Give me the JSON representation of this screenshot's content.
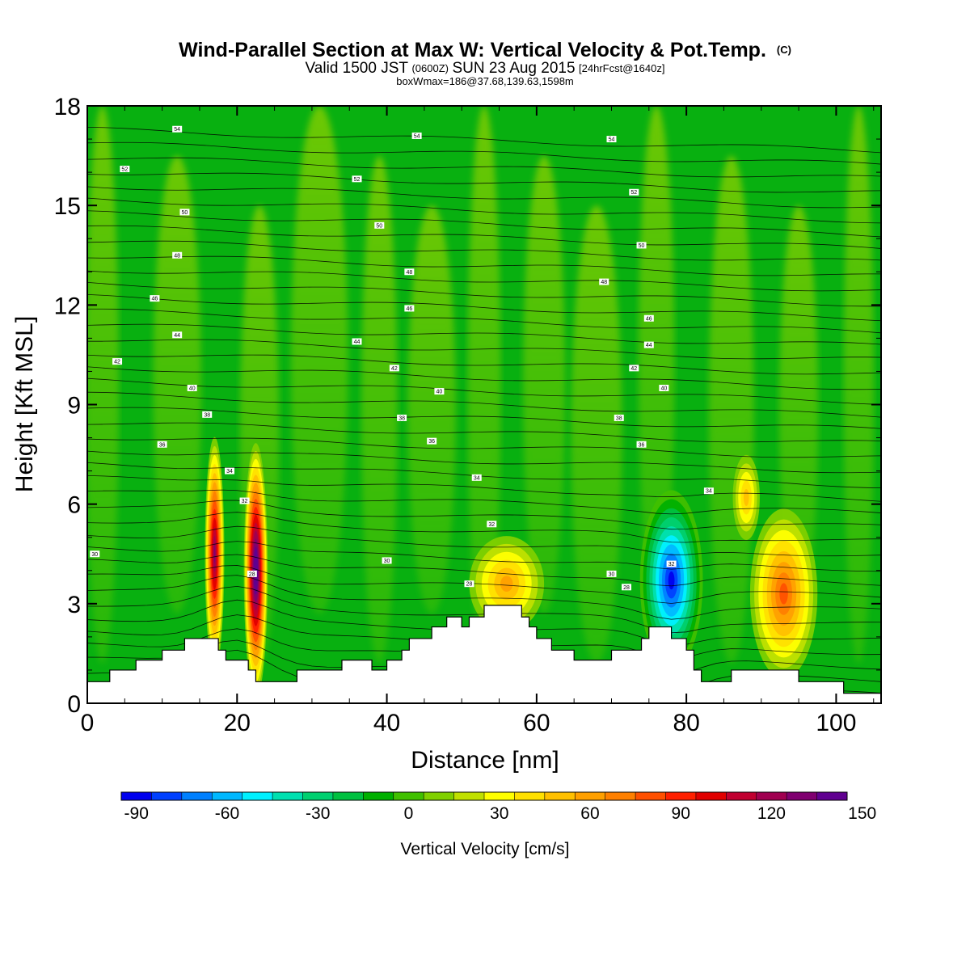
{
  "title": {
    "main": "Wind-Parallel Section at Max W: Vertical Velocity & Pot.Temp.",
    "main_mark": "(C)",
    "line2_a": "Valid 1500 JST",
    "line2_b": "(0600Z)",
    "line2_c": "SUN 23 Aug 2015",
    "line2_d": "[24hrFcst@1640z]",
    "line3": "boxWmax=186@37.68,139.63,1598m"
  },
  "chart_data": {
    "type": "heatmap",
    "xlabel": "Distance [nm]",
    "ylabel": "Height [Kft MSL]",
    "xlim": [
      0,
      106
    ],
    "ylim": [
      0,
      18
    ],
    "xticks": [
      0,
      20,
      40,
      60,
      80,
      100
    ],
    "yticks": [
      0,
      3,
      6,
      9,
      12,
      15,
      18
    ],
    "terrain_kft": [
      [
        0,
        0.65
      ],
      [
        3,
        0.65
      ],
      [
        3,
        1.0
      ],
      [
        6.5,
        1.0
      ],
      [
        6.5,
        1.3
      ],
      [
        10,
        1.3
      ],
      [
        10,
        1.6
      ],
      [
        13,
        1.6
      ],
      [
        13,
        1.95
      ],
      [
        17.5,
        1.95
      ],
      [
        17.5,
        1.6
      ],
      [
        18.5,
        1.6
      ],
      [
        18.5,
        1.3
      ],
      [
        21.5,
        1.3
      ],
      [
        21.5,
        1.0
      ],
      [
        22.5,
        1.0
      ],
      [
        22.5,
        0.65
      ],
      [
        28,
        0.65
      ],
      [
        28,
        1.0
      ],
      [
        34,
        1.0
      ],
      [
        34,
        1.3
      ],
      [
        38,
        1.3
      ],
      [
        38,
        1.0
      ],
      [
        40,
        1.0
      ],
      [
        40,
        1.3
      ],
      [
        42,
        1.3
      ],
      [
        42,
        1.6
      ],
      [
        43,
        1.6
      ],
      [
        43,
        1.95
      ],
      [
        46,
        1.95
      ],
      [
        46,
        2.3
      ],
      [
        48,
        2.3
      ],
      [
        48,
        2.6
      ],
      [
        50,
        2.6
      ],
      [
        50,
        2.3
      ],
      [
        51,
        2.3
      ],
      [
        51,
        2.6
      ],
      [
        53,
        2.6
      ],
      [
        53,
        2.95
      ],
      [
        58,
        2.95
      ],
      [
        58,
        2.6
      ],
      [
        59,
        2.6
      ],
      [
        59,
        2.3
      ],
      [
        60,
        2.3
      ],
      [
        60,
        1.95
      ],
      [
        62,
        1.95
      ],
      [
        62,
        1.6
      ],
      [
        65,
        1.6
      ],
      [
        65,
        1.3
      ],
      [
        70,
        1.3
      ],
      [
        70,
        1.6
      ],
      [
        74,
        1.6
      ],
      [
        74,
        1.95
      ],
      [
        75,
        1.95
      ],
      [
        75,
        2.3
      ],
      [
        78,
        2.3
      ],
      [
        78,
        1.95
      ],
      [
        80,
        1.95
      ],
      [
        80,
        1.6
      ],
      [
        81,
        1.6
      ],
      [
        81,
        1.0
      ],
      [
        82,
        1.0
      ],
      [
        82,
        0.65
      ],
      [
        86,
        0.65
      ],
      [
        86,
        1.0
      ],
      [
        95,
        1.0
      ],
      [
        95,
        0.65
      ],
      [
        101,
        0.65
      ],
      [
        101,
        0.3
      ],
      [
        106,
        0.3
      ]
    ],
    "w_cells_cm_s": [
      {
        "x": 17,
        "y": 4.5,
        "peak": 120
      },
      {
        "x": 22.5,
        "y": 4.0,
        "peak": 150
      },
      {
        "x": 56,
        "y": 3.6,
        "peak": 45
      },
      {
        "x": 78,
        "y": 3.7,
        "peak": -90
      },
      {
        "x": 93,
        "y": 3.3,
        "peak": 70
      },
      {
        "x": 88,
        "y": 6.2,
        "peak": 40
      }
    ],
    "theta_isentrope_labels_c": [
      {
        "x": 12,
        "y": 17.3,
        "v": "54"
      },
      {
        "x": 44,
        "y": 17.1,
        "v": "54"
      },
      {
        "x": 70,
        "y": 17.0,
        "v": "54"
      },
      {
        "x": 5,
        "y": 16.1,
        "v": "52"
      },
      {
        "x": 36,
        "y": 15.8,
        "v": "52"
      },
      {
        "x": 73,
        "y": 15.4,
        "v": "52"
      },
      {
        "x": 13,
        "y": 14.8,
        "v": "50"
      },
      {
        "x": 39,
        "y": 14.4,
        "v": "50"
      },
      {
        "x": 74,
        "y": 13.8,
        "v": "50"
      },
      {
        "x": 12,
        "y": 13.5,
        "v": "48"
      },
      {
        "x": 43,
        "y": 13.0,
        "v": "48"
      },
      {
        "x": 69,
        "y": 12.7,
        "v": "48"
      },
      {
        "x": 9,
        "y": 12.2,
        "v": "46"
      },
      {
        "x": 43,
        "y": 11.9,
        "v": "46"
      },
      {
        "x": 75,
        "y": 11.6,
        "v": "46"
      },
      {
        "x": 12,
        "y": 11.1,
        "v": "44"
      },
      {
        "x": 36,
        "y": 10.9,
        "v": "44"
      },
      {
        "x": 75,
        "y": 10.8,
        "v": "44"
      },
      {
        "x": 4,
        "y": 10.3,
        "v": "42"
      },
      {
        "x": 41,
        "y": 10.1,
        "v": "42"
      },
      {
        "x": 73,
        "y": 10.1,
        "v": "42"
      },
      {
        "x": 14,
        "y": 9.5,
        "v": "40"
      },
      {
        "x": 47,
        "y": 9.4,
        "v": "40"
      },
      {
        "x": 77,
        "y": 9.5,
        "v": "40"
      },
      {
        "x": 16,
        "y": 8.7,
        "v": "38"
      },
      {
        "x": 42,
        "y": 8.6,
        "v": "38"
      },
      {
        "x": 71,
        "y": 8.6,
        "v": "38"
      },
      {
        "x": 10,
        "y": 7.8,
        "v": "36"
      },
      {
        "x": 46,
        "y": 7.9,
        "v": "36"
      },
      {
        "x": 74,
        "y": 7.8,
        "v": "36"
      },
      {
        "x": 19,
        "y": 7.0,
        "v": "34"
      },
      {
        "x": 52,
        "y": 6.8,
        "v": "34"
      },
      {
        "x": 83,
        "y": 6.4,
        "v": "34"
      },
      {
        "x": 21,
        "y": 6.1,
        "v": "32"
      },
      {
        "x": 54,
        "y": 5.4,
        "v": "32"
      },
      {
        "x": 78,
        "y": 4.2,
        "v": "32"
      },
      {
        "x": 1,
        "y": 4.5,
        "v": "30"
      },
      {
        "x": 40,
        "y": 4.3,
        "v": "30"
      },
      {
        "x": 70,
        "y": 3.9,
        "v": "30"
      },
      {
        "x": 22,
        "y": 3.9,
        "v": "28"
      },
      {
        "x": 51,
        "y": 3.6,
        "v": "28"
      },
      {
        "x": 72,
        "y": 3.5,
        "v": "28"
      }
    ]
  },
  "colorbar": {
    "label": "Vertical Velocity [cm/s]",
    "tick_labels": [
      "-90",
      "-60",
      "-30",
      "0",
      "30",
      "60",
      "90",
      "120",
      "150"
    ],
    "min": -95,
    "step": 10,
    "colors": [
      "#0000ee",
      "#0040ff",
      "#0080ff",
      "#00b8ff",
      "#00f0ff",
      "#00e0b0",
      "#00d070",
      "#00c040",
      "#00b000",
      "#40c000",
      "#80d000",
      "#c0e000",
      "#ffff00",
      "#ffe000",
      "#ffc000",
      "#ffa000",
      "#ff8000",
      "#ff5000",
      "#ff2000",
      "#e00000",
      "#c00030",
      "#a00050",
      "#800070",
      "#600090"
    ]
  }
}
